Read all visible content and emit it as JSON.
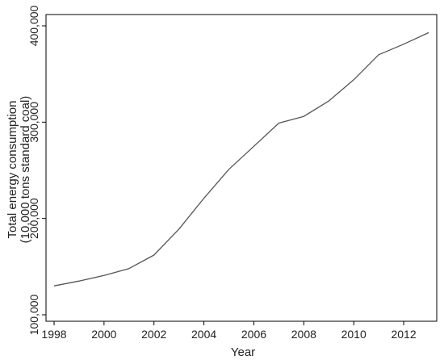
{
  "chart_data": {
    "type": "line",
    "xlabel": "Year",
    "ylabel_lines": [
      "Total energy consumption",
      "(10,000 tons standard coal)"
    ],
    "x": [
      1998,
      1999,
      2000,
      2001,
      2002,
      2003,
      2004,
      2005,
      2006,
      2007,
      2008,
      2009,
      2010,
      2011,
      2012,
      2013
    ],
    "series": [
      {
        "values": [
          130000,
          135000,
          140900,
          148000,
          162000,
          189000,
          221000,
          251000,
          275000,
          299000,
          306000,
          322000,
          344000,
          370000,
          381000,
          393000
        ]
      }
    ],
    "xlim": [
      1998,
      2013
    ],
    "ylim": [
      100000,
      400000
    ],
    "xticks": [
      1998,
      2000,
      2002,
      2004,
      2006,
      2008,
      2010,
      2012
    ],
    "xtick_labels": [
      "1998",
      "2000",
      "2002",
      "2004",
      "2006",
      "2008",
      "2010",
      "2012"
    ],
    "yticks": [
      100000,
      200000,
      300000,
      400000
    ],
    "ytick_labels": [
      "100,000",
      "200,000",
      "300,000",
      "400,000"
    ],
    "grid": false,
    "colors": {
      "line": "#555555",
      "axis": "#000000"
    }
  }
}
